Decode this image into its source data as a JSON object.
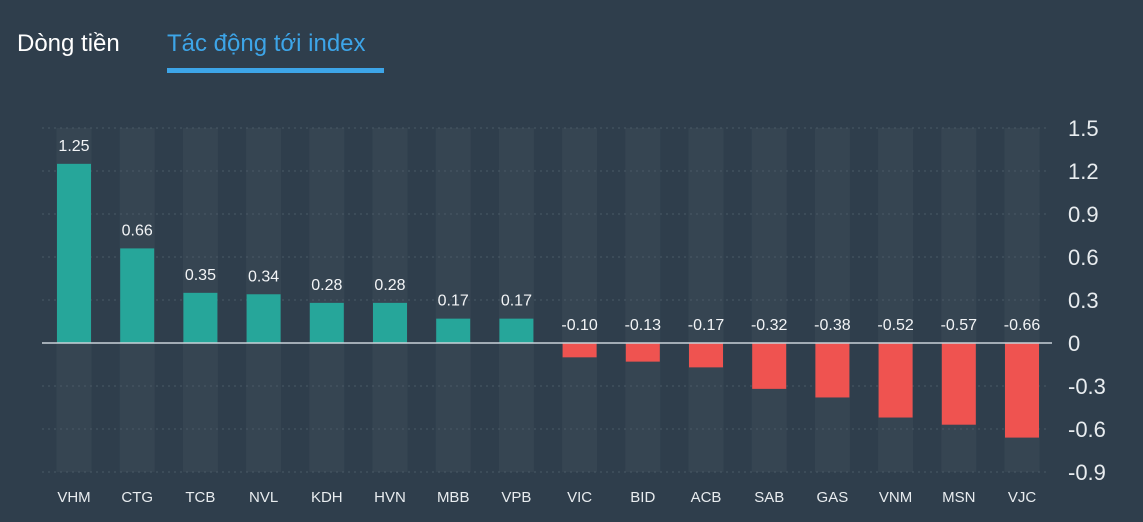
{
  "tabs": [
    {
      "label": "Dòng tiền",
      "active": false
    },
    {
      "label": "Tác động tới index",
      "active": true
    }
  ],
  "colors": {
    "background": "#2f3e4c",
    "column_band": "#364552",
    "positive": "#26a69a",
    "negative": "#ef5350",
    "axis_text": "#e8ecef",
    "label_text": "#f2f4f6",
    "accent": "#3da5e8"
  },
  "chart_data": {
    "type": "bar",
    "categories": [
      "VHM",
      "CTG",
      "TCB",
      "NVL",
      "KDH",
      "HVN",
      "MBB",
      "VPB",
      "VIC",
      "BID",
      "ACB",
      "SAB",
      "GAS",
      "VNM",
      "MSN",
      "VJC"
    ],
    "values": [
      1.25,
      0.66,
      0.35,
      0.34,
      0.28,
      0.28,
      0.17,
      0.17,
      -0.1,
      -0.13,
      -0.17,
      -0.32,
      -0.38,
      -0.52,
      -0.57,
      -0.66
    ],
    "data_labels": [
      "1.25",
      "0.66",
      "0.35",
      "0.34",
      "0.28",
      "0.28",
      "0.17",
      "0.17",
      "-0.10",
      "-0.13",
      "-0.17",
      "-0.32",
      "-0.38",
      "-0.52",
      "-0.57",
      "-0.66"
    ],
    "yticks": [
      1.5,
      1.2,
      0.9,
      0.6,
      0.3,
      0,
      -0.3,
      -0.6,
      -0.9
    ],
    "ytick_labels": [
      "1.5",
      "1.2",
      "0.9",
      "0.6",
      "0.3",
      "0",
      "-0.3",
      "-0.6",
      "-0.9"
    ],
    "ylim": [
      -0.9,
      1.5
    ],
    "y_axis_side": "right",
    "title": "",
    "xlabel": "",
    "ylabel": ""
  }
}
